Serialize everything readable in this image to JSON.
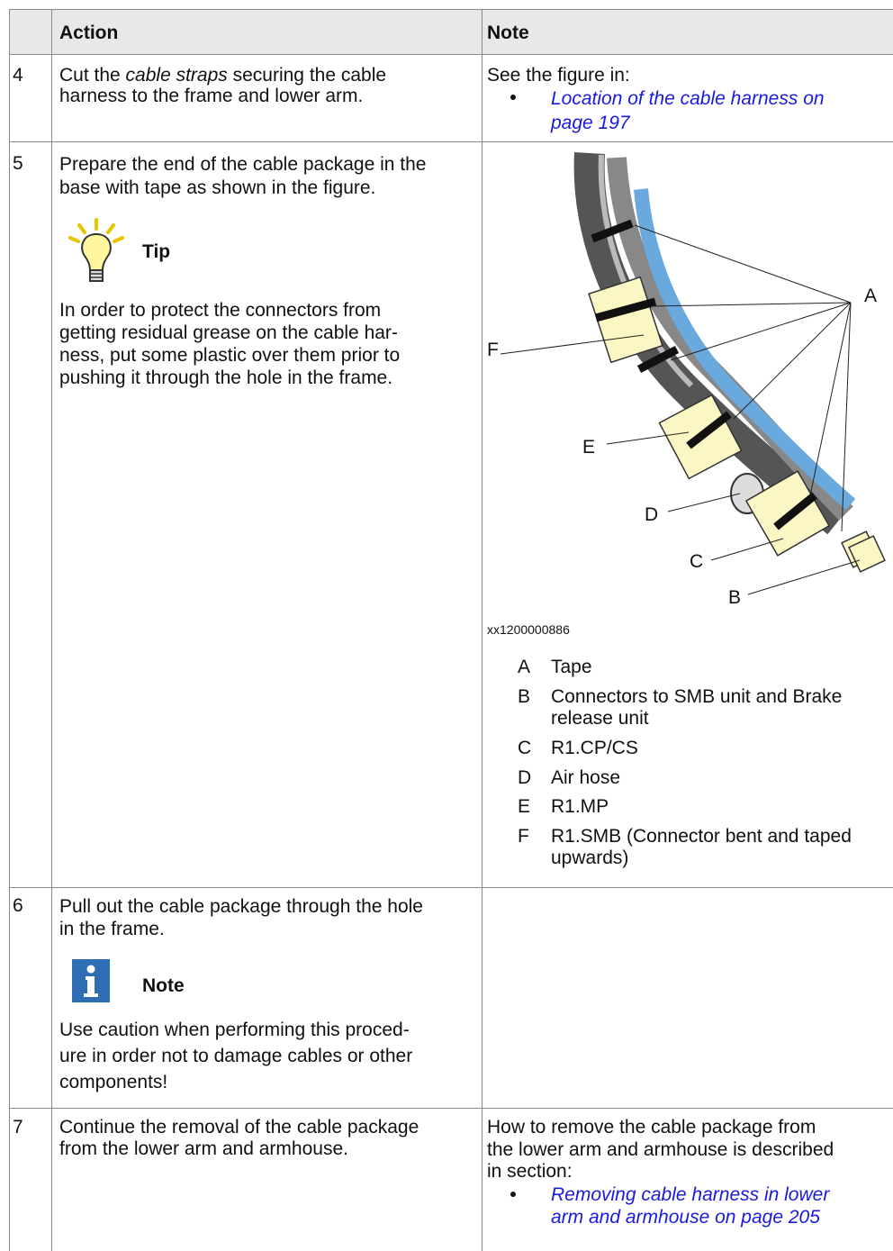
{
  "table": {
    "headers": {
      "action": "Action",
      "note": "Note"
    },
    "rows": [
      {
        "step": "4",
        "action": [
          "Cut the ",
          "cable straps",
          " securing the cable",
          "harness to the frame and lower arm."
        ],
        "note": {
          "intro": "See the figure in:",
          "link": [
            "Location of the cable harness on",
            "page 197"
          ]
        }
      },
      {
        "step": "5",
        "action": [
          "Prepare the end of the cable package in the",
          "base with tape as shown in the figure."
        ],
        "tip": {
          "title": "Tip",
          "text": [
            "In order to protect the connectors from",
            "getting residual grease on the cable har-",
            "ness, put some plastic over them prior to",
            "pushing it through the hole in the frame."
          ]
        },
        "figure": {
          "callouts": [
            "A",
            "F",
            "E",
            "D",
            "C",
            "B"
          ],
          "id": "xx1200000886",
          "legend": [
            {
              "key": "A",
              "text": [
                "Tape"
              ]
            },
            {
              "key": "B",
              "text": [
                "Connectors to SMB unit and Brake",
                "release unit"
              ]
            },
            {
              "key": "C",
              "text": [
                "R1.CP/CS"
              ]
            },
            {
              "key": "D",
              "text": [
                "Air hose"
              ]
            },
            {
              "key": "E",
              "text": [
                "R1.MP"
              ]
            },
            {
              "key": "F",
              "text": [
                "R1.SMB (Connector bent and taped",
                "upwards)"
              ]
            }
          ]
        }
      },
      {
        "step": "6",
        "action": [
          "Pull out the cable package through the hole",
          "in the frame."
        ],
        "note": {
          "title": "Note",
          "text": [
            "Use caution when performing this proced-",
            "ure in order not to damage cables or other",
            "components!"
          ]
        }
      },
      {
        "step": "7",
        "action": [
          "Continue the removal of the cable package",
          "from the lower arm and armhouse."
        ],
        "note": {
          "text": [
            "How to remove the cable package from",
            "the lower arm and armhouse is described",
            "in section:"
          ],
          "link": [
            "Removing cable harness in lower",
            "arm and armhouse on page 205"
          ]
        }
      }
    ]
  }
}
